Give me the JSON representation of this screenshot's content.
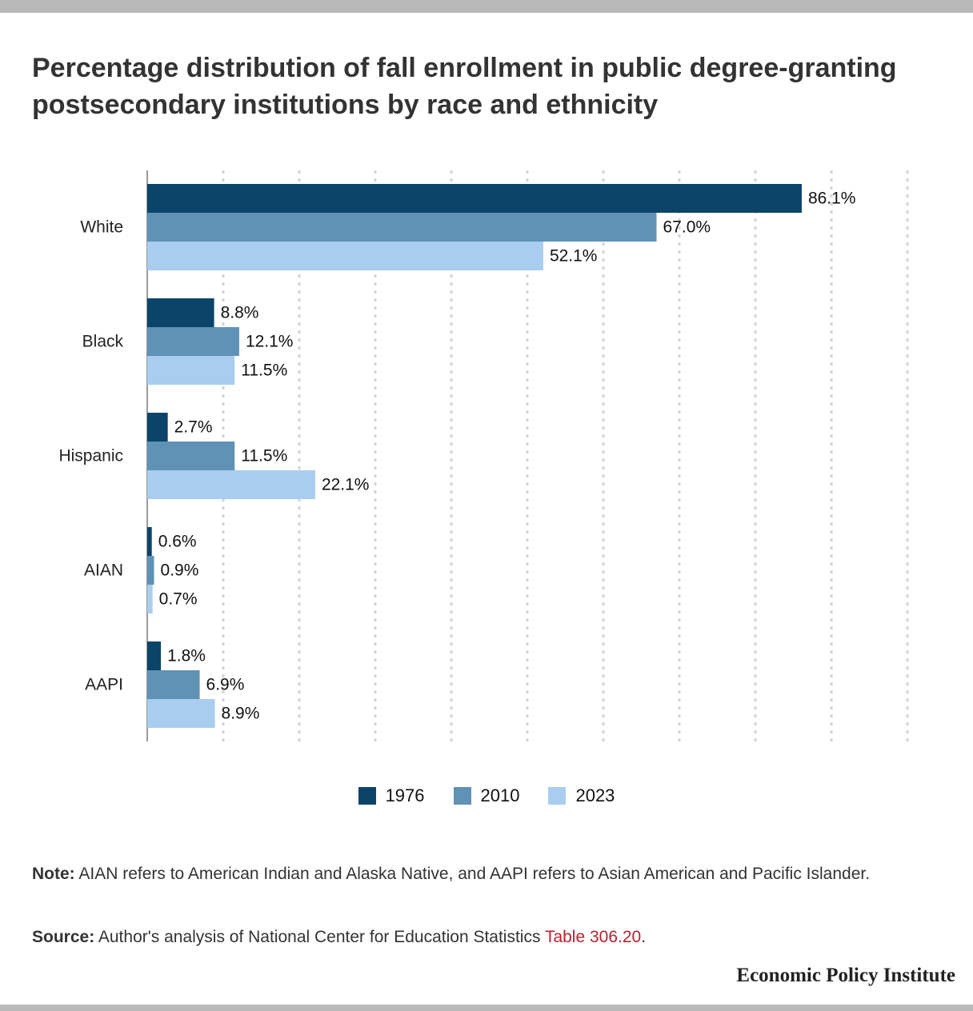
{
  "title": "Percentage distribution of fall enrollment in public degree-granting postsecondary institutions by race and ethnicity",
  "colors": {
    "s1976": "#0b4468",
    "s2010": "#5f92b5",
    "s2023": "#a9cdef",
    "grid": "#d4d4d4",
    "axis": "#9a9a9a",
    "link": "#b5222f",
    "rule": "#b9b9b9"
  },
  "chart_data": {
    "type": "bar",
    "orientation": "horizontal",
    "categories": [
      "White",
      "Black",
      "Hispanic",
      "AIAN",
      "AAPI"
    ],
    "series": [
      {
        "name": "1976",
        "values": [
          86.1,
          8.8,
          2.7,
          0.6,
          1.8
        ],
        "labels": [
          "86.1%",
          "8.8%",
          "2.7%",
          "0.6%",
          "1.8%"
        ],
        "color": "#0b4468"
      },
      {
        "name": "2010",
        "values": [
          67.0,
          12.1,
          11.5,
          0.9,
          6.9
        ],
        "labels": [
          "67.0%",
          "12.1%",
          "11.5%",
          "0.9%",
          "6.9%"
        ],
        "color": "#5f92b5"
      },
      {
        "name": "2023",
        "values": [
          52.1,
          11.5,
          22.1,
          0.7,
          8.9
        ],
        "labels": [
          "52.1%",
          "11.5%",
          "22.1%",
          "0.7%",
          "8.9%"
        ],
        "color": "#a9cdef"
      }
    ],
    "xlim": [
      0,
      100
    ],
    "grid": true,
    "legend_position": "bottom-center"
  },
  "legend": {
    "items": [
      "1976",
      "2010",
      "2023"
    ]
  },
  "note": {
    "lead": "Note:",
    "text": " AIAN refers to American Indian and Alaska Native, and AAPI refers to Asian American and Pacific Islander."
  },
  "source": {
    "lead": "Source:",
    "text": " Author's analysis of National Center for Education Statistics ",
    "link": "Table 306.20",
    "end": "."
  },
  "brand": "Economic Policy Institute"
}
